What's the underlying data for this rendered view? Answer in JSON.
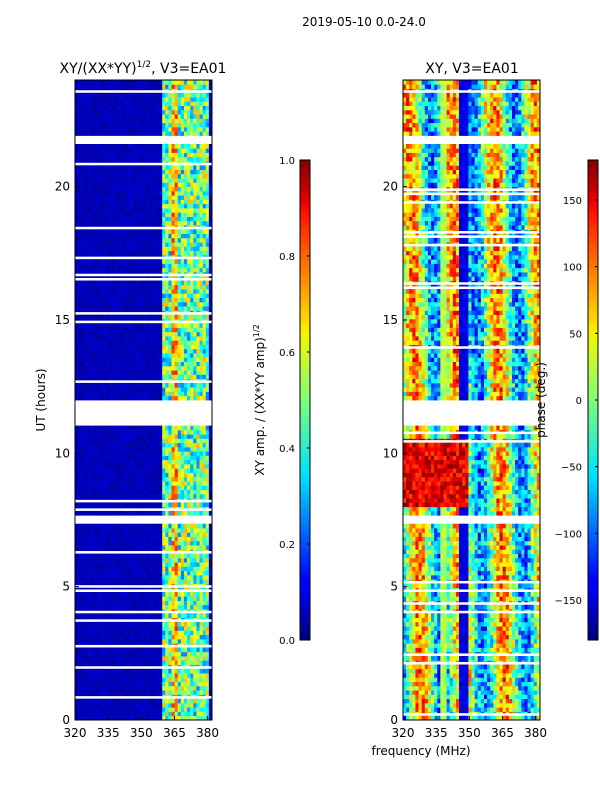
{
  "suptitle": "2019-05-10 0.0-24.0",
  "chart_data": [
    {
      "type": "heatmap",
      "title_prefix": "XY/(XX*YY)",
      "title_sup": "1/2",
      "title_suffix": ", V3=EA01",
      "ylabel": "UT (hours)",
      "xlim": [
        320,
        382
      ],
      "ylim": [
        0,
        24
      ],
      "xticks": [
        "320",
        "335",
        "350",
        "365",
        "380"
      ],
      "yticks": [
        "0",
        "5",
        "10",
        "15",
        "20"
      ],
      "colormap": "jet",
      "colorbar": {
        "label_prefix": "XY amp. / (XX*YY amp)",
        "label_sup": "1/2",
        "range": [
          0.0,
          1.0
        ],
        "ticks": [
          "0.0",
          "0.2",
          "0.4",
          "0.6",
          "0.8",
          "1.0"
        ]
      }
    },
    {
      "type": "heatmap",
      "title": "XY, V3=EA01",
      "xlabel": "frequency (MHz)",
      "xlim": [
        320,
        382
      ],
      "ylim": [
        0,
        24
      ],
      "xticks": [
        "320",
        "335",
        "350",
        "365",
        "380"
      ],
      "yticks": [
        "0",
        "5",
        "10",
        "15",
        "20"
      ],
      "colormap": "jet",
      "colorbar": {
        "label": "phase (deg.)",
        "range": [
          -180,
          180
        ],
        "ticks": [
          "−150",
          "−100",
          "−50",
          "0",
          "50",
          "100",
          "150"
        ]
      }
    }
  ],
  "data_gaps_ut_hours": [
    [
      11.0,
      12.0
    ],
    [
      21.6,
      21.9
    ],
    [
      7.4,
      7.65
    ]
  ]
}
